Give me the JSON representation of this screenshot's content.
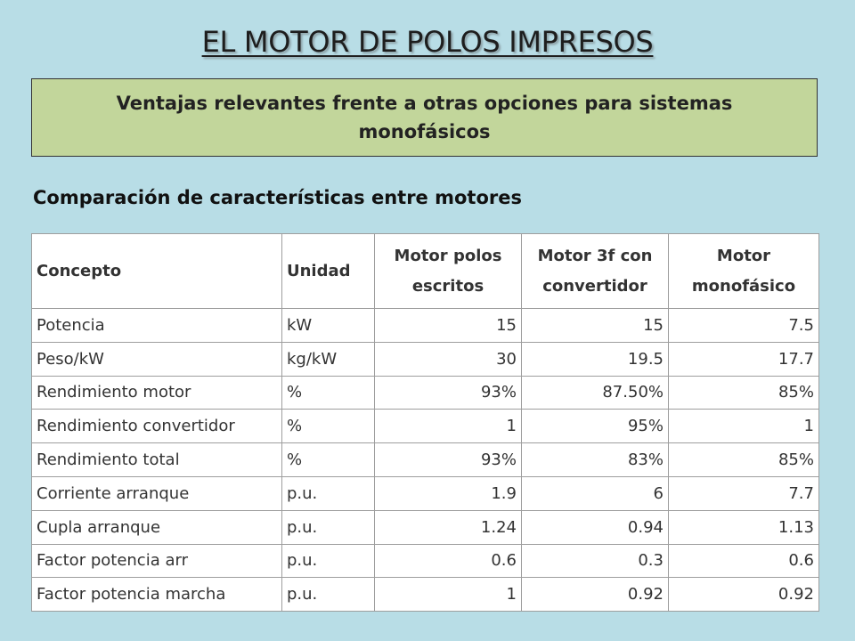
{
  "slide": {
    "title": "EL MOTOR DE POLOS IMPRESOS",
    "subtitle": "Ventajas relevantes frente a otras opciones para sistemas monofásicos",
    "section_heading": "Comparación de características entre motores"
  },
  "table": {
    "headers": [
      "Concepto",
      "Unidad",
      "Motor polos escritos",
      "Motor 3f con convertidor",
      "Motor monofásico"
    ],
    "rows": [
      [
        "Potencia",
        "kW",
        "15",
        "15",
        "7.5"
      ],
      [
        "Peso/kW",
        "kg/kW",
        "30",
        "19.5",
        "17.7"
      ],
      [
        "Rendimiento motor",
        "%",
        "93%",
        "87.50%",
        "85%"
      ],
      [
        "Rendimiento convertidor",
        "%",
        "1",
        "95%",
        "1"
      ],
      [
        "Rendimiento total",
        "%",
        "93%",
        "83%",
        "85%"
      ],
      [
        "Corriente arranque",
        "p.u.",
        "1.9",
        "6",
        "7.7"
      ],
      [
        "Cupla arranque",
        "p.u.",
        "1.24",
        "0.94",
        "1.13"
      ],
      [
        "Factor potencia arr",
        "p.u.",
        "0.6",
        "0.3",
        "0.6"
      ],
      [
        "Factor potencia marcha",
        "p.u.",
        "1",
        "0.92",
        "0.92"
      ]
    ]
  }
}
